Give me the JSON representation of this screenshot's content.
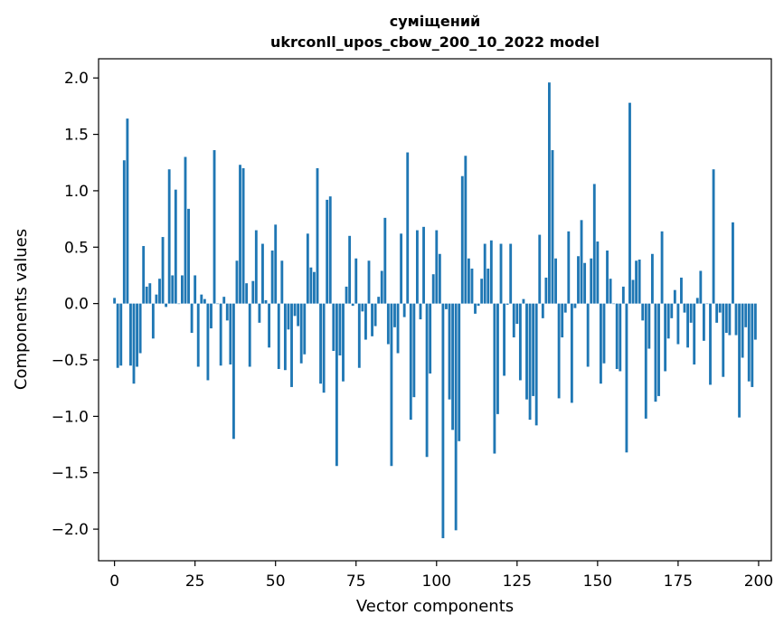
{
  "chart_data": {
    "type": "bar",
    "title": [
      "суміщений",
      "ukrconll_upos_cbow_200_10_2022 model"
    ],
    "xlabel": "Vector components",
    "ylabel": "Components values",
    "xlim": [
      -4.95,
      203.95
    ],
    "ylim": [
      -2.28,
      2.17
    ],
    "xticks": [
      0,
      25,
      50,
      75,
      100,
      125,
      150,
      175,
      200
    ],
    "yticks": [
      -2.0,
      -1.5,
      -1.0,
      -0.5,
      0.0,
      0.5,
      1.0,
      1.5,
      2.0
    ],
    "ytick_labels": [
      "−2.0",
      "−1.5",
      "−1.0",
      "−0.5",
      "0.0",
      "0.5",
      "1.0",
      "1.5",
      "2.0"
    ],
    "bar_color": "#1f77b4",
    "grid": false,
    "values": [
      0.05,
      -0.57,
      -0.55,
      1.27,
      1.64,
      -0.55,
      -0.71,
      -0.56,
      -0.44,
      0.51,
      0.15,
      0.18,
      -0.31,
      0.08,
      0.22,
      0.59,
      -0.03,
      1.19,
      0.25,
      1.01,
      0.0,
      0.25,
      1.3,
      0.84,
      -0.26,
      0.25,
      -0.56,
      0.08,
      0.04,
      -0.68,
      -0.22,
      1.36,
      0.0,
      -0.55,
      0.06,
      -0.15,
      -0.54,
      -1.2,
      0.38,
      1.23,
      1.2,
      0.18,
      -0.56,
      0.2,
      0.65,
      -0.17,
      0.53,
      0.03,
      -0.39,
      0.47,
      0.7,
      -0.58,
      0.38,
      -0.59,
      -0.23,
      -0.74,
      -0.11,
      -0.2,
      -0.53,
      -0.45,
      0.62,
      0.32,
      0.28,
      1.2,
      -0.71,
      -0.79,
      0.92,
      0.95,
      -0.42,
      -1.44,
      -0.46,
      -0.69,
      0.15,
      0.6,
      -0.02,
      0.4,
      -0.57,
      -0.07,
      -0.32,
      0.38,
      -0.29,
      -0.2,
      0.06,
      0.29,
      0.76,
      -0.36,
      -1.44,
      -0.21,
      -0.44,
      0.62,
      -0.12,
      1.34,
      -1.03,
      -0.83,
      0.65,
      -0.14,
      0.68,
      -1.36,
      -0.62,
      0.26,
      0.65,
      0.44,
      -2.08,
      -0.05,
      -0.85,
      -1.12,
      -2.01,
      -1.22,
      1.13,
      1.31,
      0.4,
      0.31,
      -0.09,
      -0.02,
      0.22,
      0.53,
      0.31,
      0.56,
      -1.33,
      -0.98,
      0.53,
      -0.64,
      -0.01,
      0.53,
      -0.3,
      -0.18,
      -0.68,
      0.04,
      -0.85,
      -1.03,
      -0.82,
      -1.08,
      0.61,
      -0.13,
      0.23,
      1.96,
      1.36,
      0.4,
      -0.84,
      -0.3,
      -0.08,
      0.64,
      -0.88,
      -0.04,
      0.42,
      0.74,
      0.36,
      -0.56,
      0.4,
      1.06,
      0.55,
      -0.71,
      -0.53,
      0.47,
      0.22,
      0.0,
      -0.58,
      -0.6,
      0.15,
      -1.32,
      1.78,
      0.21,
      0.38,
      0.39,
      -0.15,
      -1.02,
      -0.4,
      0.44,
      -0.87,
      -0.82,
      0.64,
      -0.6,
      -0.31,
      -0.13,
      0.12,
      -0.36,
      0.23,
      -0.08,
      -0.39,
      -0.17,
      -0.54,
      0.05,
      0.29,
      -0.33,
      0.0,
      -0.72,
      1.19,
      -0.17,
      -0.08,
      -0.65,
      -0.26,
      -0.28,
      0.72,
      -0.28,
      -1.01,
      -0.48,
      -0.21,
      -0.69,
      -0.74,
      -0.32
    ]
  }
}
